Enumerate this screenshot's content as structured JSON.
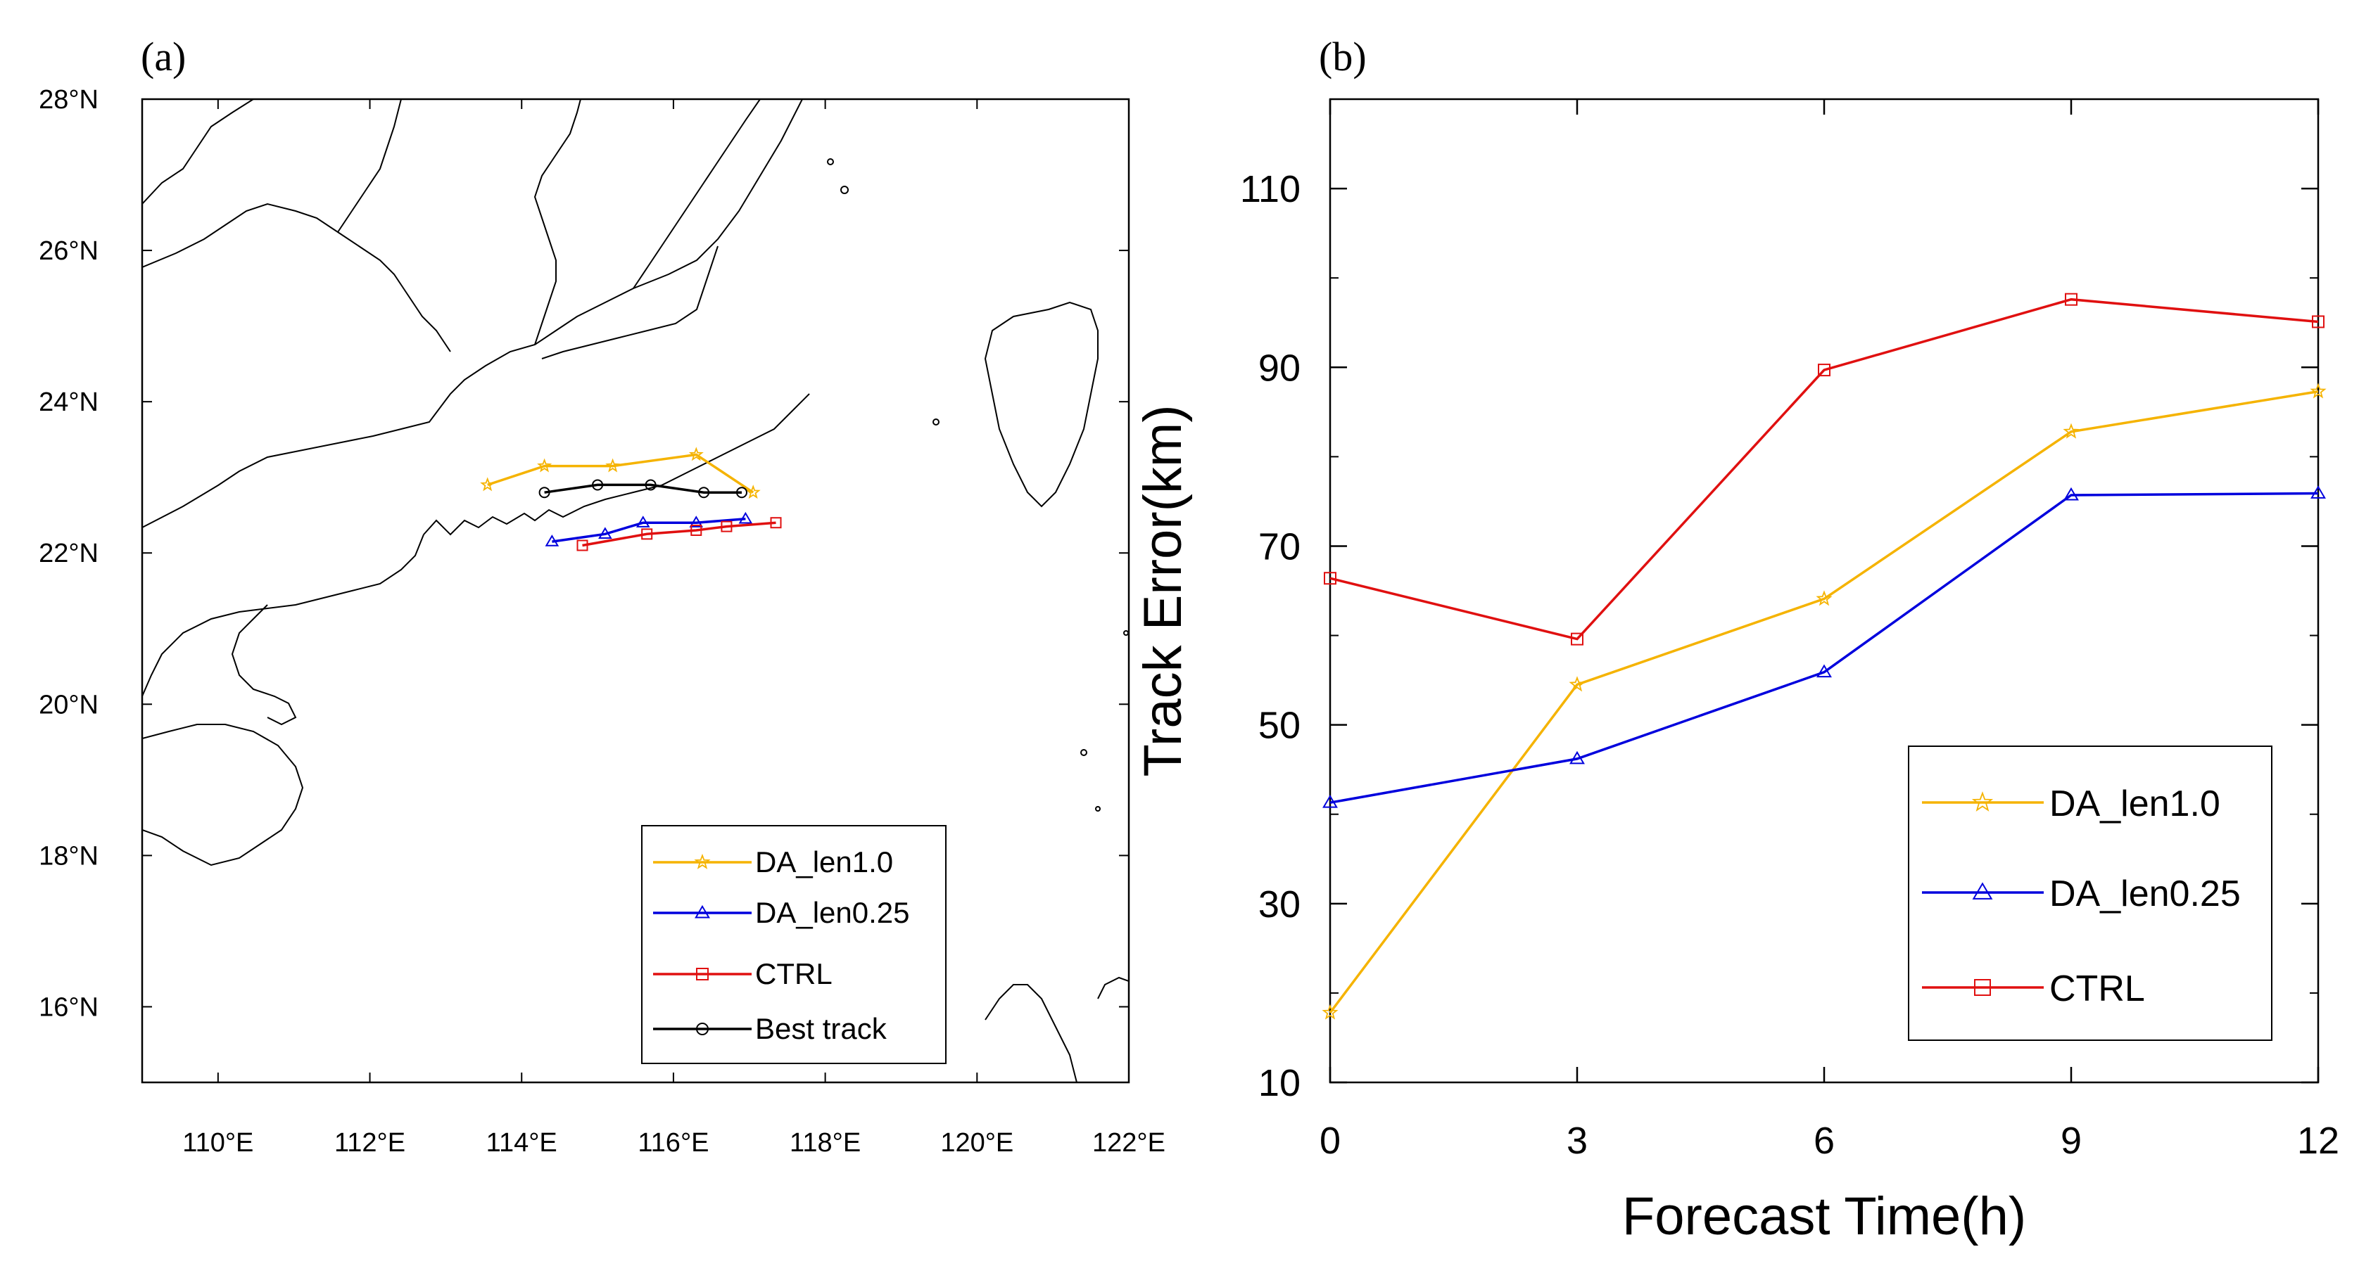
{
  "chart_data": [
    {
      "panel": "(a)",
      "type": "line",
      "subtype": "map-track",
      "x_axis": {
        "range": [
          109,
          122
        ],
        "ticks": [
          110,
          112,
          114,
          116,
          118,
          120,
          122
        ],
        "tick_labels": [
          "110°E",
          "112°E",
          "114°E",
          "116°E",
          "118°E",
          "120°E",
          "122°E"
        ]
      },
      "y_axis": {
        "range": [
          15,
          28
        ],
        "ticks": [
          16,
          18,
          20,
          22,
          24,
          26,
          28
        ],
        "tick_labels": [
          "16°N",
          "18°N",
          "20°N",
          "22°N",
          "24°N",
          "26°N",
          "28°N"
        ]
      },
      "legend": {
        "position": "bottom-right",
        "entries": [
          "DA_len1.0",
          "DA_len0.25",
          "CTRL",
          "Best track"
        ]
      },
      "series": [
        {
          "name": "DA_len1.0",
          "color": "#f5b300",
          "marker": "star",
          "points": [
            [
              113.55,
              22.9
            ],
            [
              114.3,
              23.15
            ],
            [
              115.2,
              23.15
            ],
            [
              116.3,
              23.3
            ],
            [
              117.05,
              22.8
            ]
          ]
        },
        {
          "name": "DA_len0.25",
          "color": "#0000dd",
          "marker": "triangle",
          "points": [
            [
              114.4,
              22.15
            ],
            [
              115.1,
              22.25
            ],
            [
              115.6,
              22.4
            ],
            [
              116.3,
              22.4
            ],
            [
              116.95,
              22.45
            ]
          ]
        },
        {
          "name": "CTRL",
          "color": "#e01010",
          "marker": "square",
          "points": [
            [
              114.8,
              22.1
            ],
            [
              115.65,
              22.25
            ],
            [
              116.3,
              22.3
            ],
            [
              116.7,
              22.35
            ],
            [
              117.35,
              22.4
            ]
          ]
        },
        {
          "name": "Best track",
          "color": "#000000",
          "marker": "circle",
          "points": [
            [
              114.3,
              22.8
            ],
            [
              115.0,
              22.9
            ],
            [
              115.7,
              22.9
            ],
            [
              116.4,
              22.8
            ],
            [
              116.9,
              22.8
            ]
          ]
        }
      ]
    },
    {
      "panel": "(b)",
      "type": "line",
      "xlabel": "Forecast Time(h)",
      "ylabel": "Track Error(km)",
      "x": [
        0,
        3,
        6,
        9,
        12
      ],
      "xlim": [
        0,
        12
      ],
      "ylim": [
        10,
        120
      ],
      "x_ticks": [
        0,
        3,
        6,
        9,
        12
      ],
      "y_ticks": [
        10,
        30,
        50,
        70,
        90,
        110
      ],
      "legend": {
        "position": "bottom-right",
        "entries": [
          "DA_len1.0",
          "DA_len0.25",
          "CTRL"
        ]
      },
      "series": [
        {
          "name": "DA_len1.0",
          "color": "#f5b300",
          "marker": "star",
          "values": [
            17.8,
            54.5,
            64.1,
            82.8,
            87.3
          ]
        },
        {
          "name": "DA_len0.25",
          "color": "#0000dd",
          "marker": "triangle",
          "values": [
            41.3,
            46.2,
            55.9,
            75.7,
            75.9
          ]
        },
        {
          "name": "CTRL",
          "color": "#e01010",
          "marker": "square",
          "values": [
            66.4,
            59.6,
            89.7,
            97.6,
            95.1
          ]
        }
      ]
    }
  ]
}
